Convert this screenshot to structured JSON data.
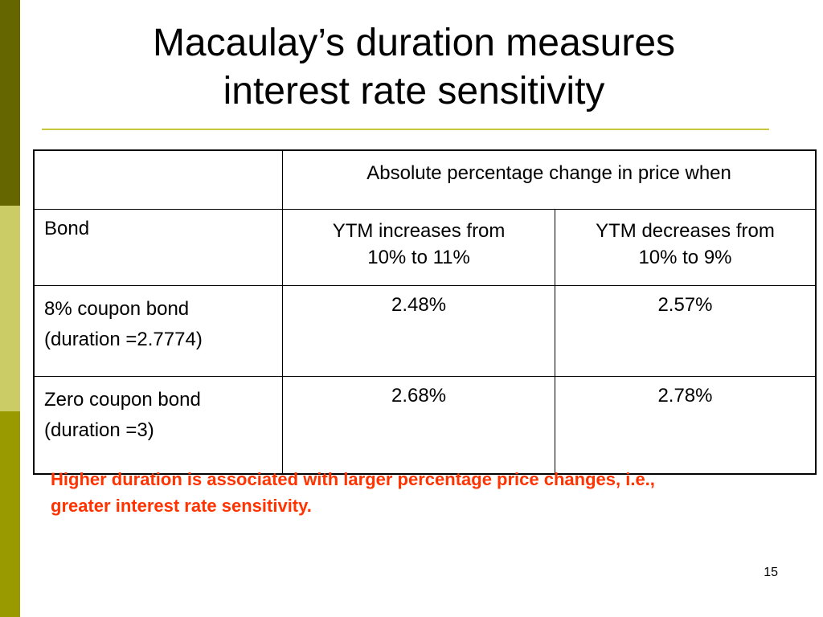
{
  "slide": {
    "title_line1": "Macaulay’s duration measures",
    "title_line2": "interest rate sensitivity",
    "page_number": "15",
    "note": "Higher duration is associated with larger percentage price changes, i.e., greater interest rate sensitivity."
  },
  "table": {
    "header": {
      "top_left": "",
      "span_label": "Absolute percentage change in price when"
    },
    "subheader": {
      "col1": "Bond",
      "col2_line1": "YTM increases from",
      "col2_line2": "10% to 11%",
      "col3_line1": "YTM decreases from",
      "col3_line2": "10% to 9%"
    },
    "rows": [
      {
        "bond_line1": "8% coupon bond",
        "bond_line2": "(duration =2.7774)",
        "increase": "2.48%",
        "decrease": "2.57%"
      },
      {
        "bond_line1": "Zero coupon bond",
        "bond_line2": "(duration =3)",
        "increase": "2.68%",
        "decrease": "2.78%"
      }
    ]
  },
  "colors": {
    "sidebar_dark": "#666600",
    "sidebar_light": "#cccc66",
    "sidebar_mid": "#999900",
    "rule": "#c8c83c",
    "note_text": "#ff3300"
  }
}
